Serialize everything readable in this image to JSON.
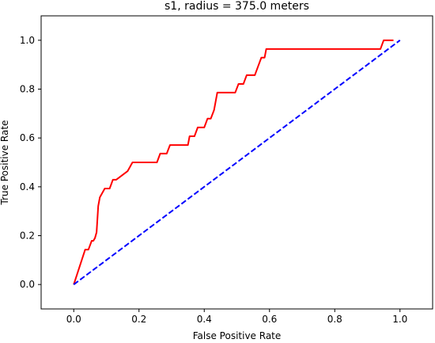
{
  "chart_data": {
    "type": "line",
    "title": "s1, radius = 375.0 meters",
    "xlabel": "False Positive Rate",
    "ylabel": "True Positive Rate",
    "xlim": [
      -0.1,
      1.1
    ],
    "ylim": [
      -0.1,
      1.1
    ],
    "x_ticks": [
      "0.0",
      "0.2",
      "0.4",
      "0.6",
      "0.8",
      "1.0"
    ],
    "y_ticks": [
      "0.0",
      "0.2",
      "0.4",
      "0.6",
      "0.8",
      "1.0"
    ],
    "grid": false,
    "series": [
      {
        "style": "solid",
        "color": "#ff0000",
        "x": [
          0.0,
          0.035,
          0.045,
          0.055,
          0.06,
          0.065,
          0.07,
          0.075,
          0.08,
          0.095,
          0.11,
          0.12,
          0.13,
          0.165,
          0.18,
          0.255,
          0.265,
          0.285,
          0.295,
          0.35,
          0.355,
          0.37,
          0.38,
          0.4,
          0.41,
          0.42,
          0.43,
          0.435,
          0.44,
          0.445,
          0.495,
          0.505,
          0.52,
          0.53,
          0.555,
          0.565,
          0.575,
          0.585,
          0.59,
          0.94,
          0.95,
          0.97,
          0.98
        ],
        "y": [
          0.0,
          0.143,
          0.143,
          0.179,
          0.179,
          0.19,
          0.214,
          0.321,
          0.357,
          0.393,
          0.393,
          0.429,
          0.429,
          0.464,
          0.5,
          0.5,
          0.536,
          0.536,
          0.571,
          0.571,
          0.607,
          0.607,
          0.643,
          0.643,
          0.679,
          0.679,
          0.714,
          0.75,
          0.786,
          0.786,
          0.786,
          0.821,
          0.821,
          0.857,
          0.857,
          0.893,
          0.929,
          0.929,
          0.964,
          0.964,
          1.0,
          1.0,
          1.0
        ]
      },
      {
        "style": "dashed",
        "color": "#0000ff",
        "x": [
          0.0,
          1.0
        ],
        "y": [
          0.0,
          1.0
        ]
      }
    ]
  }
}
